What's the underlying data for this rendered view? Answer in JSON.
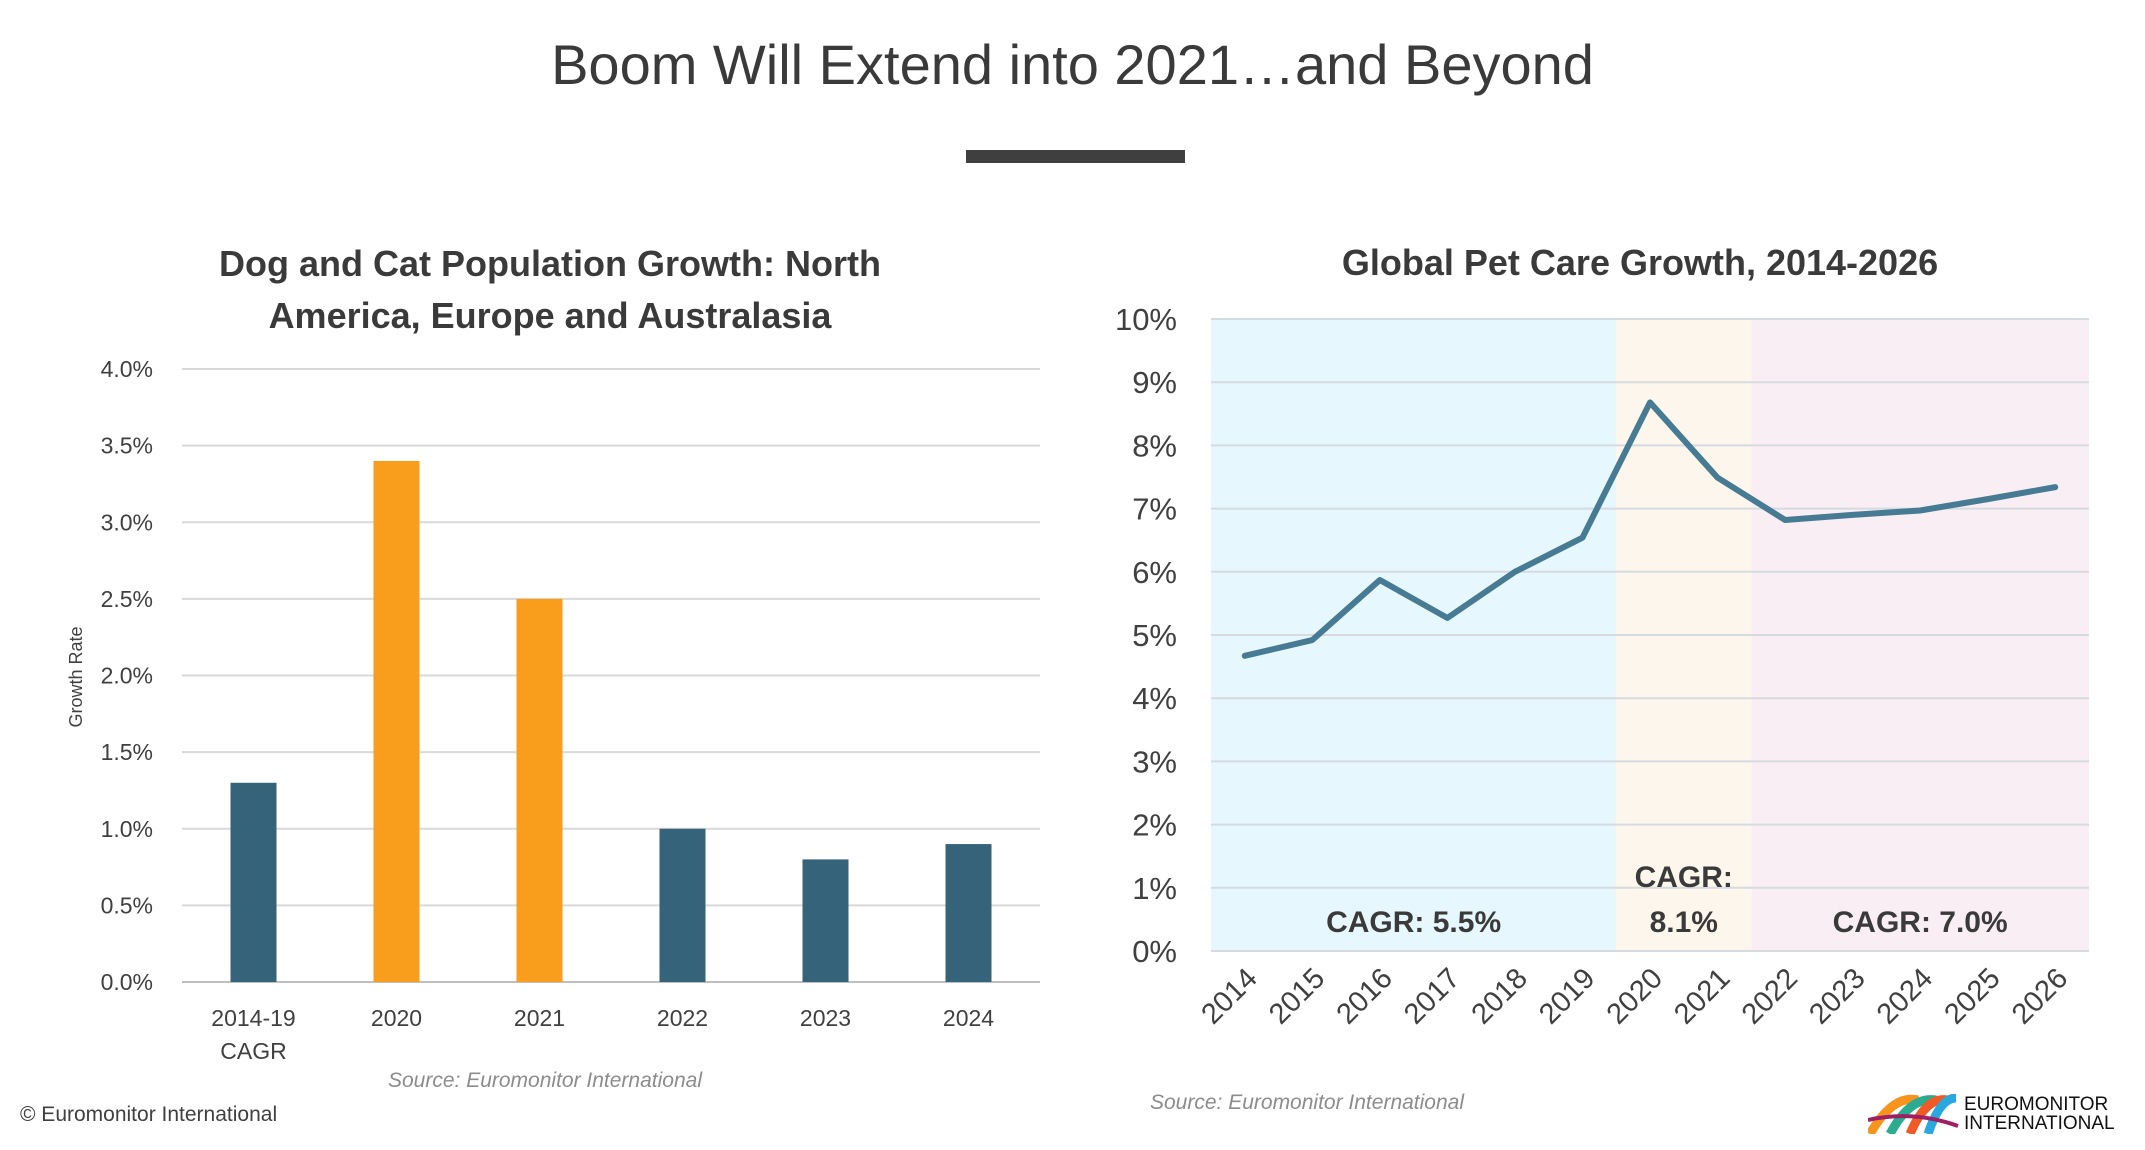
{
  "title": "Boom Will Extend into 2021…and Beyond",
  "copyright": "© Euromonitor International",
  "logo": {
    "line1": "EUROMONITOR",
    "line2": "INTERNATIONAL"
  },
  "colors": {
    "bar_dark": "#35637a",
    "bar_orange": "#f99d1c",
    "line": "#467b93",
    "band_blue": "#e6f7fd",
    "band_orange": "#fdf6ec",
    "band_pink": "#f8eef4"
  },
  "chart_data": [
    {
      "type": "bar",
      "title_line1": "Dog and Cat Population Growth: North",
      "title_line2": "America, Europe and Australasia",
      "categories": [
        "2014-19 CAGR",
        "2020",
        "2021",
        "2022",
        "2023",
        "2024"
      ],
      "category_lines": [
        [
          "2014-19",
          "CAGR"
        ],
        [
          "2020"
        ],
        [
          "2021"
        ],
        [
          "2022"
        ],
        [
          "2023"
        ],
        [
          "2024"
        ]
      ],
      "values": [
        1.3,
        3.4,
        2.5,
        1.0,
        0.8,
        0.9
      ],
      "highlight": [
        false,
        true,
        true,
        false,
        false,
        false
      ],
      "ylabel": "Growth Rate",
      "ylim": [
        0,
        4
      ],
      "yticks": [
        "0.0%",
        "0.5%",
        "1.0%",
        "1.5%",
        "2.0%",
        "2.5%",
        "3.0%",
        "3.5%",
        "4.0%"
      ],
      "grid": true,
      "source": "Source: Euromonitor International"
    },
    {
      "type": "line",
      "title": "Global Pet Care Growth, 2014-2026",
      "x": [
        "2014",
        "2015",
        "2016",
        "2017",
        "2018",
        "2019",
        "2020",
        "2021",
        "2022",
        "2023",
        "2024",
        "2025",
        "2026"
      ],
      "values": [
        4.67,
        4.92,
        5.87,
        5.27,
        6.0,
        6.54,
        8.68,
        7.49,
        6.82,
        6.9,
        6.97,
        7.15,
        7.34
      ],
      "ylim": [
        0,
        10
      ],
      "yticks": [
        "0%",
        "1%",
        "2%",
        "3%",
        "4%",
        "5%",
        "6%",
        "7%",
        "8%",
        "9%",
        "10%"
      ],
      "bands": [
        {
          "from": -0.5,
          "to": 5.5,
          "label_lines": [
            "CAGR: 5.5%"
          ]
        },
        {
          "from": 5.5,
          "to": 7.5,
          "label_lines": [
            "CAGR:",
            "8.1%"
          ]
        },
        {
          "from": 7.5,
          "to": 12.5,
          "label_lines": [
            "CAGR: 7.0%"
          ]
        }
      ],
      "grid": true,
      "source": "Source: Euromonitor International"
    }
  ]
}
